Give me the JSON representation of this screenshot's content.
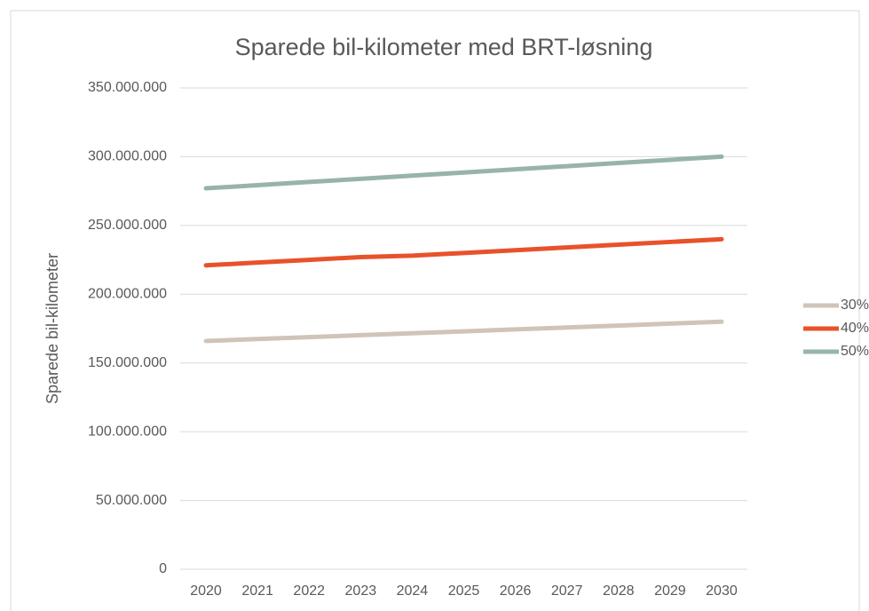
{
  "chart_data": {
    "type": "line",
    "title": "Sparede bil-kilometer med BRT-løsning",
    "y_label": "Sparede bil-kilometer",
    "x": [
      "2020",
      "2021",
      "2022",
      "2023",
      "2024",
      "2025",
      "2026",
      "2027",
      "2028",
      "2029",
      "2030"
    ],
    "series": [
      {
        "name": "30%",
        "color": "#d0c4b8",
        "values": [
          166000000,
          167400000,
          168800000,
          170200000,
          171600000,
          173000000,
          174400000,
          175800000,
          177200000,
          178600000,
          180000000
        ]
      },
      {
        "name": "40%",
        "color": "#e8522a",
        "values": [
          221000000,
          223000000,
          225000000,
          227000000,
          228000000,
          230000000,
          232000000,
          234000000,
          236000000,
          238000000,
          240000000
        ]
      },
      {
        "name": "50%",
        "color": "#97b4a8",
        "values": [
          277000000,
          279300000,
          281600000,
          283900000,
          286200000,
          288500000,
          290800000,
          293100000,
          295400000,
          297700000,
          300000000
        ]
      }
    ],
    "ylim": [
      0,
      350000000
    ],
    "yticks": [
      0,
      {
        "value": 50000000,
        "label": "50.000.000"
      },
      {
        "value": 100000000,
        "label": "100.000.000"
      },
      {
        "value": 150000000,
        "label": "150.000.000"
      },
      {
        "value": 200000000,
        "label": "200.000.000"
      },
      {
        "value": 250000000,
        "label": "250.000.000"
      },
      {
        "value": 300000000,
        "label": "300.000.000"
      },
      {
        "value": 350000000,
        "label": "350.000.000"
      }
    ],
    "grid": true,
    "legend": "right"
  }
}
